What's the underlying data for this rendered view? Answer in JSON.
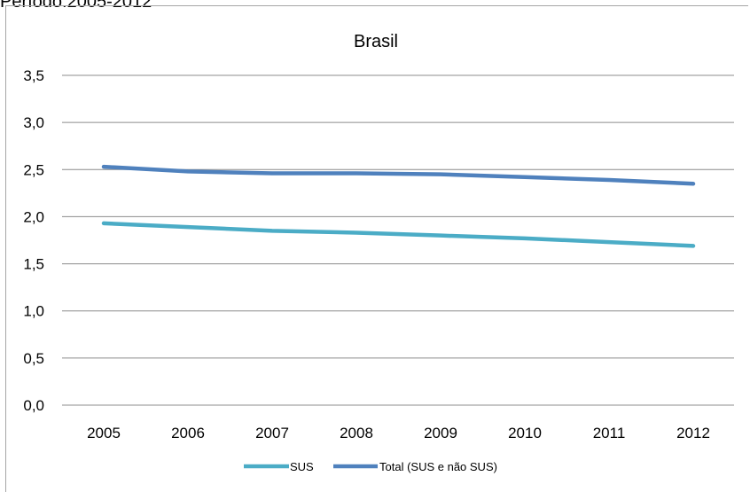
{
  "page_heading": "Período:2005-2012",
  "chart_data": {
    "type": "line",
    "title": "Brasil",
    "xlabel": "",
    "ylabel": "",
    "x": [
      "2005",
      "2006",
      "2007",
      "2008",
      "2009",
      "2010",
      "2011",
      "2012"
    ],
    "y_ticks": [
      "0,0",
      "0,5",
      "1,0",
      "1,5",
      "2,0",
      "2,5",
      "3,0",
      "3,5"
    ],
    "ylim": [
      0,
      3.5
    ],
    "grid": true,
    "legend_position": "bottom",
    "series": [
      {
        "name": "SUS",
        "color": "#4bacc6",
        "values": [
          1.93,
          1.89,
          1.85,
          1.83,
          1.8,
          1.77,
          1.73,
          1.69
        ]
      },
      {
        "name": "Total (SUS e não SUS)",
        "color": "#4f81bd",
        "values": [
          2.53,
          2.48,
          2.46,
          2.46,
          2.45,
          2.42,
          2.39,
          2.35
        ]
      }
    ]
  }
}
